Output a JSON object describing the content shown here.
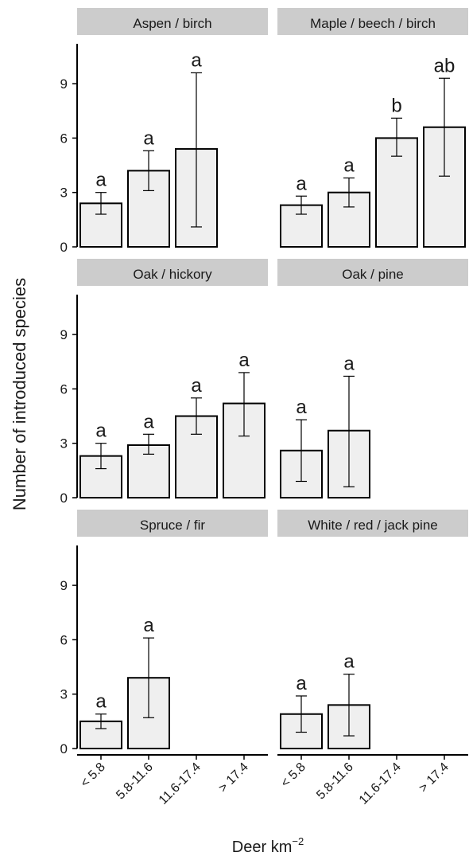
{
  "chart_data": {
    "type": "bar",
    "ylabel": "Number of introduced species",
    "xlabel": "Deer km",
    "xlabel_superscript": "−2",
    "categories": [
      "< 5.8",
      "5.8-11.6",
      "11.6-17.4",
      "> 17.4"
    ],
    "yticks": [
      0,
      3,
      6,
      9
    ],
    "ylim": [
      0,
      11.2
    ],
    "grid": false,
    "bar_fill": "#efefef",
    "strip_fill": "#cccccc",
    "panels": [
      {
        "title": "Aspen / birch",
        "bars": [
          {
            "category": "< 5.8",
            "value": 2.4,
            "err_low": 1.8,
            "err_high": 3.0,
            "letter": "a"
          },
          {
            "category": "5.8-11.6",
            "value": 4.2,
            "err_low": 3.1,
            "err_high": 5.3,
            "letter": "a"
          },
          {
            "category": "11.6-17.4",
            "value": 5.4,
            "err_low": 1.1,
            "err_high": 9.6,
            "letter": "a"
          }
        ]
      },
      {
        "title": "Maple / beech / birch",
        "bars": [
          {
            "category": "< 5.8",
            "value": 2.3,
            "err_low": 1.8,
            "err_high": 2.8,
            "letter": "a"
          },
          {
            "category": "5.8-11.6",
            "value": 3.0,
            "err_low": 2.2,
            "err_high": 3.8,
            "letter": "a"
          },
          {
            "category": "11.6-17.4",
            "value": 6.0,
            "err_low": 5.0,
            "err_high": 7.1,
            "letter": "b"
          },
          {
            "category": "> 17.4",
            "value": 6.6,
            "err_low": 3.9,
            "err_high": 9.3,
            "letter": "ab"
          }
        ]
      },
      {
        "title": "Oak / hickory",
        "bars": [
          {
            "category": "< 5.8",
            "value": 2.3,
            "err_low": 1.6,
            "err_high": 3.0,
            "letter": "a"
          },
          {
            "category": "5.8-11.6",
            "value": 2.9,
            "err_low": 2.4,
            "err_high": 3.5,
            "letter": "a"
          },
          {
            "category": "11.6-17.4",
            "value": 4.5,
            "err_low": 3.5,
            "err_high": 5.5,
            "letter": "a"
          },
          {
            "category": "> 17.4",
            "value": 5.2,
            "err_low": 3.4,
            "err_high": 6.9,
            "letter": "a"
          }
        ]
      },
      {
        "title": "Oak / pine",
        "bars": [
          {
            "category": "< 5.8",
            "value": 2.6,
            "err_low": 0.9,
            "err_high": 4.3,
            "letter": "a"
          },
          {
            "category": "5.8-11.6",
            "value": 3.7,
            "err_low": 0.6,
            "err_high": 6.7,
            "letter": "a"
          }
        ]
      },
      {
        "title": "Spruce / fir",
        "bars": [
          {
            "category": "< 5.8",
            "value": 1.5,
            "err_low": 1.1,
            "err_high": 1.9,
            "letter": "a"
          },
          {
            "category": "5.8-11.6",
            "value": 3.9,
            "err_low": 1.7,
            "err_high": 6.1,
            "letter": "a"
          }
        ]
      },
      {
        "title": "White / red / jack pine",
        "bars": [
          {
            "category": "< 5.8",
            "value": 1.9,
            "err_low": 0.9,
            "err_high": 2.9,
            "letter": "a"
          },
          {
            "category": "5.8-11.6",
            "value": 2.4,
            "err_low": 0.7,
            "err_high": 4.1,
            "letter": "a"
          }
        ]
      }
    ]
  }
}
